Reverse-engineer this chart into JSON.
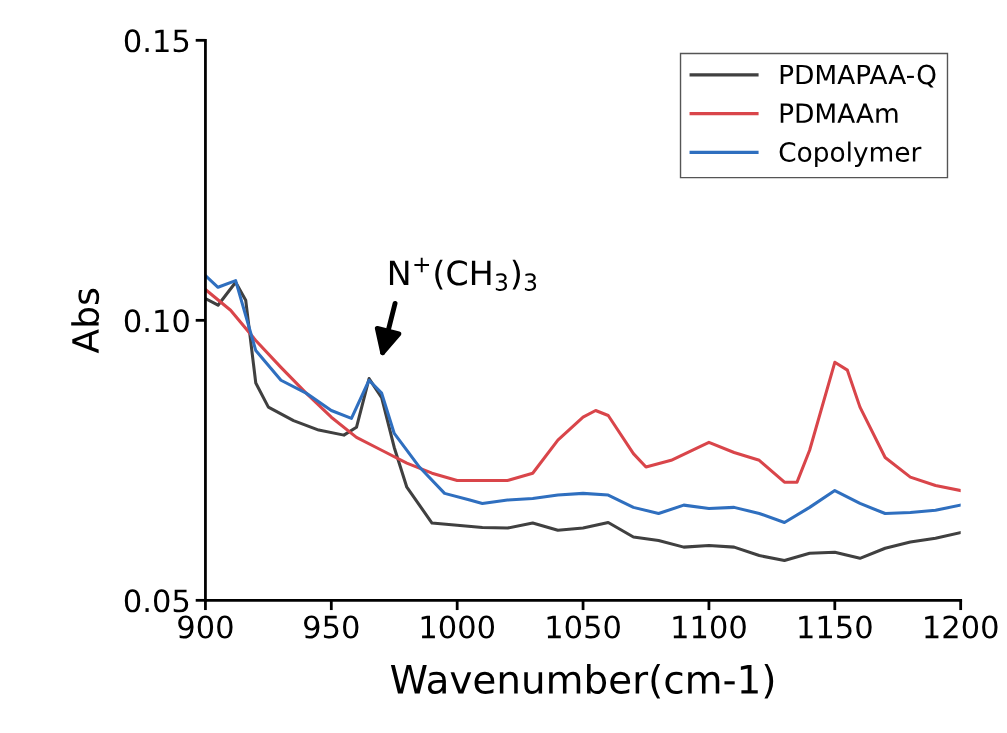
{
  "chart_data": {
    "type": "line",
    "xlabel": "Wavenumber(cm-1)",
    "ylabel": "Abs",
    "xlim": [
      900,
      1200
    ],
    "xticks": [
      900,
      950,
      1000,
      1050,
      1100,
      1150,
      1200
    ],
    "ylim": [
      0.05,
      0.15
    ],
    "yticks": [
      0.05,
      {
        "value": 0.1,
        "label": "0.10"
      },
      0.15
    ],
    "grid": false,
    "legend": "top right",
    "line_style": "solid",
    "annotations": [
      "N$^{+}$(CH$_{3}$)$_{3}$"
    ],
    "series": [
      {
        "name": "PDMAPAA-Q",
        "color": "#404040",
        "x": [
          900,
          905,
          912,
          916,
          920,
          925,
          935,
          945,
          955,
          960,
          965,
          970,
          975,
          980,
          990,
          1000,
          1010,
          1020,
          1030,
          1040,
          1050,
          1060,
          1070,
          1080,
          1090,
          1100,
          1110,
          1120,
          1130,
          1140,
          1150,
          1160,
          1170,
          1180,
          1190,
          1200
        ],
        "values": [
          0.1039,
          0.1027,
          0.1068,
          0.1036,
          0.0888,
          0.0845,
          0.0821,
          0.0804,
          0.0795,
          0.0809,
          0.0896,
          0.0862,
          0.0773,
          0.0702,
          0.0638,
          0.0634,
          0.063,
          0.0629,
          0.0638,
          0.0625,
          0.0629,
          0.0639,
          0.0613,
          0.0607,
          0.0595,
          0.0598,
          0.0595,
          0.058,
          0.0571,
          0.0584,
          0.0586,
          0.0575,
          0.0593,
          0.0604,
          0.0611,
          0.0621
        ]
      },
      {
        "name": "PDMAAm",
        "color": "#d9454a",
        "x": [
          900,
          910,
          920,
          930,
          940,
          950,
          960,
          970,
          980,
          990,
          1000,
          1010,
          1020,
          1030,
          1040,
          1050,
          1055,
          1060,
          1070,
          1075,
          1085,
          1100,
          1110,
          1120,
          1130,
          1135,
          1140,
          1150,
          1155,
          1160,
          1170,
          1180,
          1190,
          1200
        ],
        "values": [
          0.1055,
          0.1018,
          0.0964,
          0.0916,
          0.087,
          0.0827,
          0.0791,
          0.0768,
          0.0745,
          0.0727,
          0.0714,
          0.0714,
          0.0714,
          0.0727,
          0.0786,
          0.0827,
          0.0839,
          0.083,
          0.0762,
          0.0738,
          0.075,
          0.0782,
          0.0764,
          0.075,
          0.0711,
          0.0711,
          0.0768,
          0.0925,
          0.0911,
          0.0845,
          0.0755,
          0.072,
          0.0705,
          0.0696
        ]
      },
      {
        "name": "Copolymer",
        "color": "#2f6fbf",
        "x": [
          900,
          905,
          912,
          920,
          930,
          940,
          950,
          958,
          965,
          970,
          975,
          985,
          995,
          1005,
          1010,
          1020,
          1030,
          1040,
          1050,
          1060,
          1070,
          1080,
          1090,
          1100,
          1110,
          1120,
          1130,
          1140,
          1150,
          1160,
          1170,
          1180,
          1190,
          1200
        ],
        "values": [
          0.108,
          0.1059,
          0.1071,
          0.0946,
          0.0893,
          0.087,
          0.0839,
          0.0825,
          0.0893,
          0.087,
          0.0798,
          0.0738,
          0.0691,
          0.0679,
          0.0673,
          0.0679,
          0.0682,
          0.0688,
          0.0691,
          0.0688,
          0.0666,
          0.0655,
          0.067,
          0.0664,
          0.0666,
          0.0655,
          0.0639,
          0.0666,
          0.0696,
          0.0673,
          0.0655,
          0.0657,
          0.0661,
          0.067
        ]
      }
    ]
  }
}
